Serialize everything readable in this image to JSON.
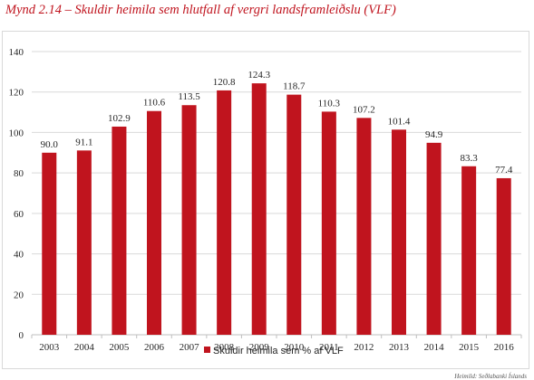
{
  "header": {
    "title": "Mynd 2.14 – Skuldir heimila sem hlutfall af vergri landsframleiðslu (VLF)"
  },
  "footer": {
    "source": "Heimild: Seðlabanki Íslands"
  },
  "colors": {
    "bar": "#c0141e",
    "gridline": "#d9d9d9",
    "axis": "#bfbfbf"
  },
  "chart_data": {
    "type": "bar",
    "categories": [
      "2003",
      "2004",
      "2005",
      "2006",
      "2007",
      "2008",
      "2009",
      "2010",
      "2011",
      "2012",
      "2013",
      "2014",
      "2015",
      "2016"
    ],
    "series": [
      {
        "name": "Skuldir heimila sem % af VLF",
        "values": [
          90.0,
          91.1,
          102.9,
          110.6,
          113.5,
          120.8,
          124.3,
          118.7,
          110.3,
          107.2,
          101.4,
          94.9,
          83.3,
          77.4
        ],
        "labels": [
          "90.0",
          "91.1",
          "102.9",
          "110.6",
          "113.5",
          "120.8",
          "124.3",
          "118.7",
          "110.3",
          "107.2",
          "101.4",
          "94.9",
          "83.3",
          "77.4"
        ]
      }
    ],
    "yticks": [
      "0",
      "20",
      "40",
      "60",
      "80",
      "100",
      "120",
      "140"
    ],
    "ylim": [
      0,
      140
    ],
    "grid": true,
    "legend_position": "bottom-center"
  }
}
